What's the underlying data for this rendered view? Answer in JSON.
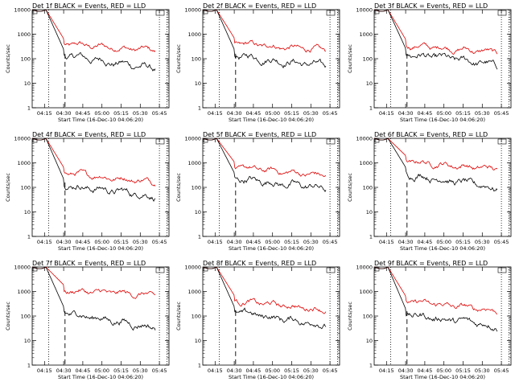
{
  "figure": {
    "ylabel": "Counts/sec",
    "xlabel": "Start Time (16-Dec-10 04:06:20)",
    "x_ticks": [
      "04:15",
      "04:30",
      "04:45",
      "05:00",
      "05:15",
      "05:30",
      "05:45"
    ],
    "y_ticks": [
      "1",
      "10",
      "100",
      "1000",
      "10000"
    ]
  },
  "chart_data": [
    {
      "type": "line",
      "title": "Det 1f BLACK = Events, RED = LLD",
      "xlabel": "Start Time (16-Dec-10 04:06:20)",
      "ylabel": "Counts/sec",
      "yscale": "log",
      "ylim": [
        1,
        10000
      ],
      "x_range": [
        "04:06:20",
        "05:48"
      ],
      "red_end": 220,
      "black_end": 40,
      "red_mid": 300,
      "black_mid": 110
    },
    {
      "type": "line",
      "title": "Det 2f BLACK = Events, RED = LLD",
      "xlabel": "Start Time (16-Dec-10 04:06:20)",
      "ylabel": "Counts/sec",
      "yscale": "log",
      "ylim": [
        1,
        10000
      ],
      "x_range": [
        "04:06:20",
        "05:48"
      ],
      "red_end": 220,
      "black_end": 50,
      "red_mid": 320,
      "black_mid": 110
    },
    {
      "type": "line",
      "title": "Det 3f BLACK = Events, RED = LLD",
      "xlabel": "Start Time (16-Dec-10 04:06:20)",
      "ylabel": "Counts/sec",
      "yscale": "log",
      "ylim": [
        1,
        10000
      ],
      "x_range": [
        "04:06:20",
        "05:48"
      ],
      "red_end": 180,
      "black_end": 55,
      "red_mid": 280,
      "black_mid": 120
    },
    {
      "type": "line",
      "title": "Det 4f BLACK = Events, RED = LLD",
      "xlabel": "Start Time (16-Dec-10 04:06:20)",
      "ylabel": "Counts/sec",
      "yscale": "log",
      "ylim": [
        1,
        10000
      ],
      "x_range": [
        "04:06:20",
        "05:48"
      ],
      "red_end": 170,
      "black_end": 45,
      "red_mid": 300,
      "black_mid": 100
    },
    {
      "type": "line",
      "title": "Det 5f BLACK = Events, RED = LLD",
      "xlabel": "Start Time (16-Dec-10 04:06:20)",
      "ylabel": "Counts/sec",
      "yscale": "log",
      "ylim": [
        1,
        10000
      ],
      "x_range": [
        "04:06:20",
        "05:48"
      ],
      "red_end": 300,
      "black_end": 90,
      "red_mid": 500,
      "black_mid": 180
    },
    {
      "type": "line",
      "title": "Det 6f BLACK = Events, RED = LLD",
      "xlabel": "Start Time (16-Dec-10 04:06:20)",
      "ylabel": "Counts/sec",
      "yscale": "log",
      "ylim": [
        1,
        10000
      ],
      "x_range": [
        "04:06:20",
        "05:48"
      ],
      "red_end": 550,
      "black_end": 90,
      "red_mid": 900,
      "black_mid": 300
    },
    {
      "type": "line",
      "title": "Det 7f BLACK = Events, RED = LLD",
      "xlabel": "Start Time (16-Dec-10 04:06:20)",
      "ylabel": "Counts/sec",
      "yscale": "log",
      "ylim": [
        1,
        10000
      ],
      "x_range": [
        "04:06:20",
        "05:48"
      ],
      "red_end": 700,
      "black_end": 35,
      "red_mid": 850,
      "black_mid": 110
    },
    {
      "type": "line",
      "title": "Det 8f BLACK = Events, RED = LLD",
      "xlabel": "Start Time (16-Dec-10 04:06:20)",
      "ylabel": "Counts/sec",
      "yscale": "log",
      "ylim": [
        1,
        10000
      ],
      "x_range": [
        "04:06:20",
        "05:48"
      ],
      "red_end": 180,
      "black_end": 45,
      "red_mid": 320,
      "black_mid": 110
    },
    {
      "type": "line",
      "title": "Det 9f BLACK = Events, RED = LLD",
      "xlabel": "Start Time (16-Dec-10 04:06:20)",
      "ylabel": "Counts/sec",
      "yscale": "log",
      "ylim": [
        1,
        10000
      ],
      "x_range": [
        "04:06:20",
        "05:48"
      ],
      "red_end": 170,
      "black_end": 40,
      "red_mid": 300,
      "black_mid": 90
    }
  ],
  "colors": {
    "events": "#000000",
    "lld": "#dd0000"
  }
}
